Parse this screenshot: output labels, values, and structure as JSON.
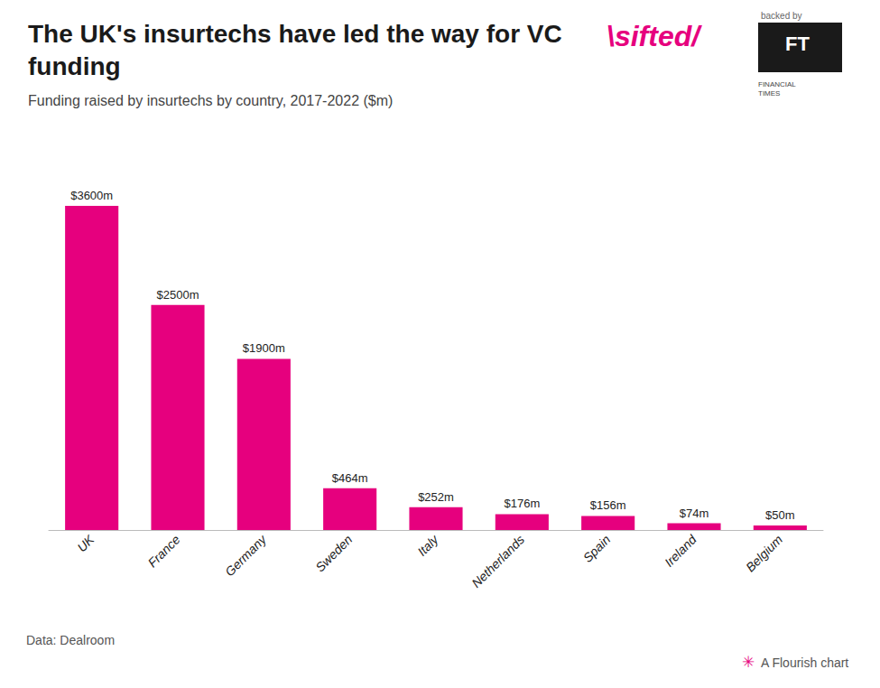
{
  "chart_data": {
    "type": "bar",
    "title": "The UK's insurtechs have led the way for VC\nfunding",
    "subtitle": "Funding raised by insurtechs by country, 2017-2022 ($m)",
    "categories": [
      "UK",
      "France",
      "Germany",
      "Sweden",
      "Italy",
      "Netherlands",
      "Spain",
      "Ireland",
      "Belgium"
    ],
    "values": [
      3600,
      2500,
      1900,
      464,
      252,
      176,
      156,
      74,
      50
    ],
    "value_labels": [
      "$3600m",
      "$2500m",
      "$1900m",
      "$464m",
      "$252m",
      "$176m",
      "$156m",
      "$74m",
      "$50m"
    ],
    "data_labels": true,
    "color": "#e6007e",
    "ylim": [
      0,
      3900
    ],
    "grid": false,
    "tick_labels": "x",
    "annotations": [
      "\\sifted/",
      "backed by",
      "FT",
      "FINANCIAL\nTIMES",
      "Data: Dealroom",
      "✳",
      "A Flourish chart"
    ]
  }
}
